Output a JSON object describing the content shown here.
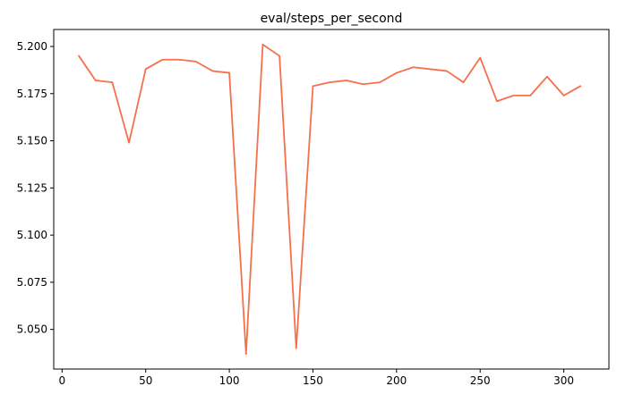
{
  "chart_data": {
    "type": "line",
    "title": "eval/steps_per_second",
    "xlabel": "",
    "ylabel": "",
    "xlim": [
      -5,
      327
    ],
    "ylim": [
      5.029,
      5.209
    ],
    "xticks": [
      0,
      50,
      100,
      150,
      200,
      250,
      300
    ],
    "yticks": [
      5.05,
      5.075,
      5.1,
      5.125,
      5.15,
      5.175,
      5.2
    ],
    "ytick_labels": [
      "5.050",
      "5.075",
      "5.100",
      "5.125",
      "5.150",
      "5.175",
      "5.200"
    ],
    "grid": false,
    "series": [
      {
        "color": "#f4714a",
        "x": [
          10,
          20,
          30,
          40,
          50,
          60,
          70,
          80,
          90,
          100,
          110,
          120,
          130,
          140,
          150,
          160,
          170,
          180,
          190,
          200,
          210,
          220,
          230,
          240,
          250,
          260,
          270,
          280,
          290,
          300,
          310
        ],
        "y": [
          5.195,
          5.182,
          5.181,
          5.149,
          5.188,
          5.193,
          5.193,
          5.192,
          5.187,
          5.186,
          5.037,
          5.201,
          5.195,
          5.04,
          5.179,
          5.181,
          5.182,
          5.18,
          5.181,
          5.186,
          5.189,
          5.188,
          5.187,
          5.181,
          5.194,
          5.171,
          5.174,
          5.174,
          5.184,
          5.174,
          5.179
        ]
      }
    ]
  }
}
